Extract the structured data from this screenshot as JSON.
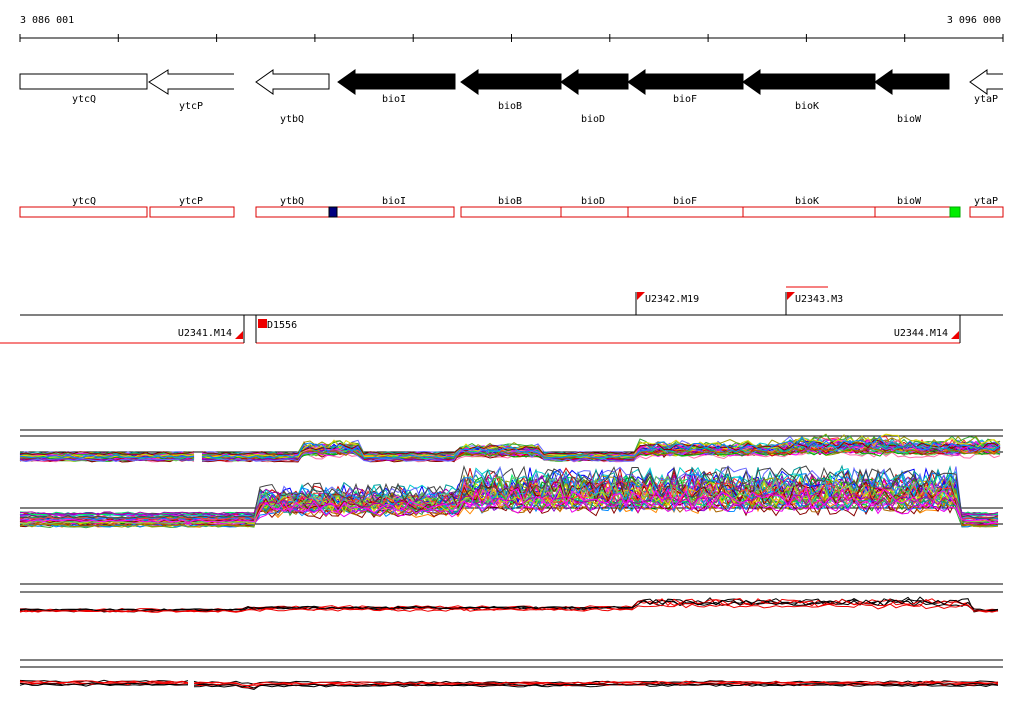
{
  "ruler": {
    "start_label": "3 086 001",
    "end_label": "3 096 000"
  },
  "genes": [
    {
      "name": "ytcQ",
      "style": "outline",
      "direction": "none"
    },
    {
      "name": "ytcP",
      "style": "outline",
      "direction": "left"
    },
    {
      "name": "ytbQ",
      "style": "outline",
      "direction": "left"
    },
    {
      "name": "bioI",
      "style": "filled",
      "direction": "left"
    },
    {
      "name": "bioB",
      "style": "filled",
      "direction": "left"
    },
    {
      "name": "bioD",
      "style": "filled",
      "direction": "left"
    },
    {
      "name": "bioF",
      "style": "filled",
      "direction": "left"
    },
    {
      "name": "bioK",
      "style": "filled",
      "direction": "left"
    },
    {
      "name": "bioW",
      "style": "filled",
      "direction": "left"
    },
    {
      "name": "ytaP",
      "style": "outline",
      "direction": "left"
    }
  ],
  "annotation_track": {
    "labels": [
      "ytcQ",
      "ytcP",
      "ytbQ",
      "bioI",
      "bioB",
      "bioD",
      "bioF",
      "bioK",
      "bioW",
      "ytaP"
    ],
    "markers": [
      {
        "color": "#000080",
        "name": "blue-marker"
      },
      {
        "color": "#00ee00",
        "name": "green-marker"
      }
    ]
  },
  "transcription_units": [
    {
      "label": "U2341.M14"
    },
    {
      "label": "D1556"
    },
    {
      "label": "U2342.M19"
    },
    {
      "label": "U2343.M3"
    },
    {
      "label": "U2344.M14"
    }
  ],
  "colors": {
    "gene_fill": "#000000",
    "annotation_outline": "#dd0000",
    "flag": "#ee0000"
  },
  "profile_panels": [
    {
      "name": "expression-profiles-top",
      "style": "multicolor"
    },
    {
      "name": "expression-profiles-middle",
      "style": "multicolor"
    },
    {
      "name": "expression-profiles-black-red-1",
      "style": "black-red"
    },
    {
      "name": "expression-profiles-black-red-2",
      "style": "black-red"
    }
  ]
}
